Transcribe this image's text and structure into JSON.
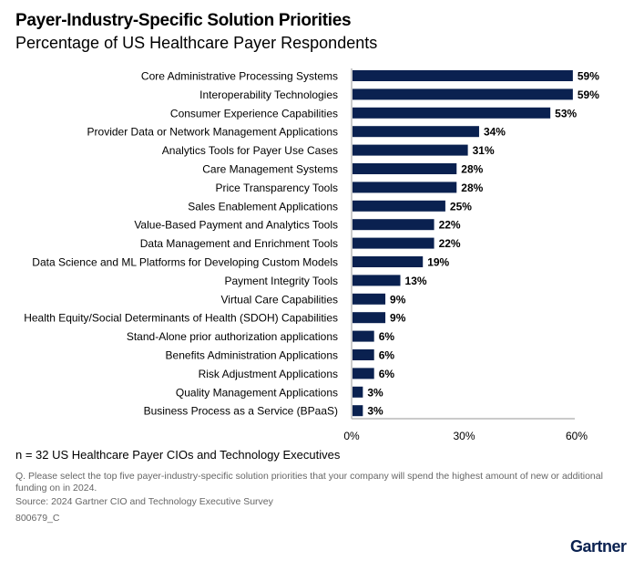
{
  "chart_data": {
    "type": "bar",
    "orientation": "horizontal",
    "title": "Payer-Industry-Specific Solution Priorities",
    "subtitle": "Percentage of US Healthcare Payer Respondents",
    "categories": [
      "Core Administrative Processing Systems",
      "Interoperability Technologies",
      "Consumer Experience Capabilities",
      "Provider Data or Network Management Applications",
      "Analytics Tools for Payer Use Cases",
      "Care Management Systems",
      "Price Transparency Tools",
      "Sales Enablement Applications",
      "Value-Based Payment and Analytics Tools",
      "Data Management and Enrichment Tools",
      "Data Science and ML Platforms for Developing Custom Models",
      "Payment Integrity Tools",
      "Virtual Care Capabilities",
      "Health Equity/Social Determinants of Health (SDOH) Capabilities",
      "Stand-Alone prior authorization applications",
      "Benefits Administration Applications",
      "Risk Adjustment Applications",
      "Quality Management Applications",
      "Business Process as a Service (BPaaS)"
    ],
    "values": [
      59,
      59,
      53,
      34,
      31,
      28,
      28,
      25,
      22,
      22,
      19,
      13,
      9,
      9,
      6,
      6,
      6,
      3,
      3
    ],
    "value_suffix": "%",
    "xlim": [
      0,
      60
    ],
    "xticks": [
      "0%",
      "30%",
      "60%"
    ],
    "xtick_values": [
      0,
      30,
      60
    ],
    "grid": false,
    "bar_color": "#0a2150"
  },
  "footer": {
    "sample": "n = 32 US Healthcare Payer CIOs and Technology Executives",
    "question": "Q. Please select the top five payer-industry-specific solution priorities that your company will spend the highest amount of new or additional funding on in 2024.",
    "source": "Source: 2024 Gartner CIO and Technology Executive Survey",
    "code": "800679_C",
    "logo": "Gartner"
  }
}
